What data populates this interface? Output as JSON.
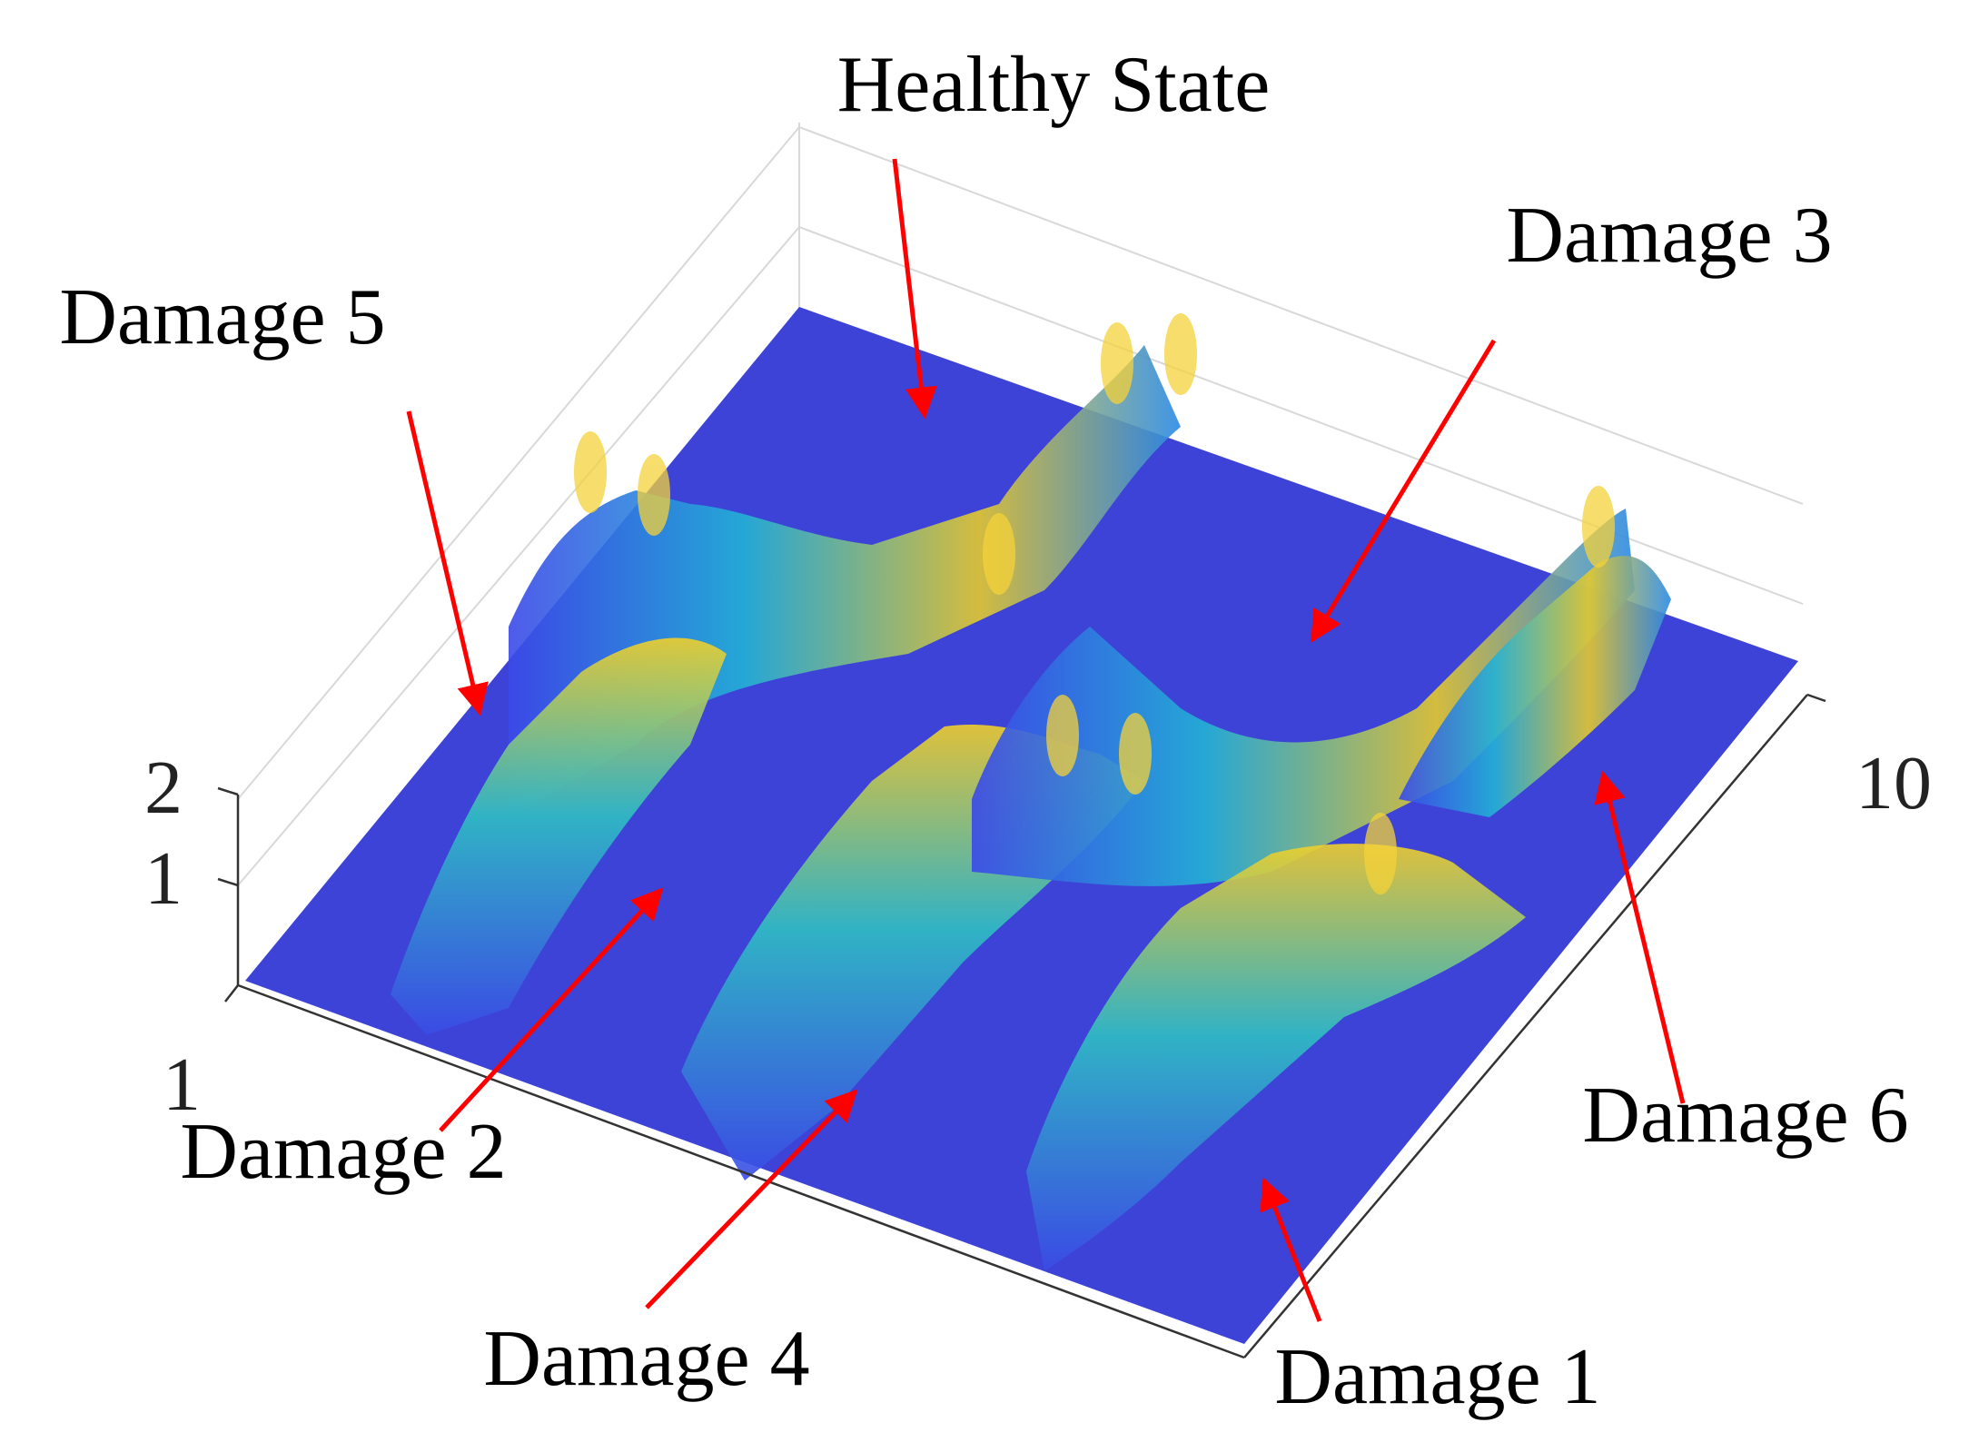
{
  "chart_data": {
    "type": "surface",
    "title": "",
    "xlabel": "",
    "ylabel": "",
    "zlabel": "",
    "x_ticks": [
      "1"
    ],
    "y_ticks": [
      "10"
    ],
    "z_ticks": [
      "1",
      "2"
    ],
    "ylim": [
      1,
      10
    ],
    "zlim": [
      0,
      2
    ],
    "colormap": "parula",
    "colors": {
      "low": "#3e3fdc",
      "mid": "#1eb8cc",
      "high": "#f2d42a",
      "arrow": "#ff0000"
    },
    "grid": true,
    "annotations": [
      {
        "id": "healthy",
        "text": "Healthy State"
      },
      {
        "id": "d1",
        "text": "Damage 1"
      },
      {
        "id": "d2",
        "text": "Damage 2"
      },
      {
        "id": "d3",
        "text": "Damage 3"
      },
      {
        "id": "d4",
        "text": "Damage 4"
      },
      {
        "id": "d5",
        "text": "Damage 5"
      },
      {
        "id": "d6",
        "text": "Damage 6"
      }
    ]
  }
}
